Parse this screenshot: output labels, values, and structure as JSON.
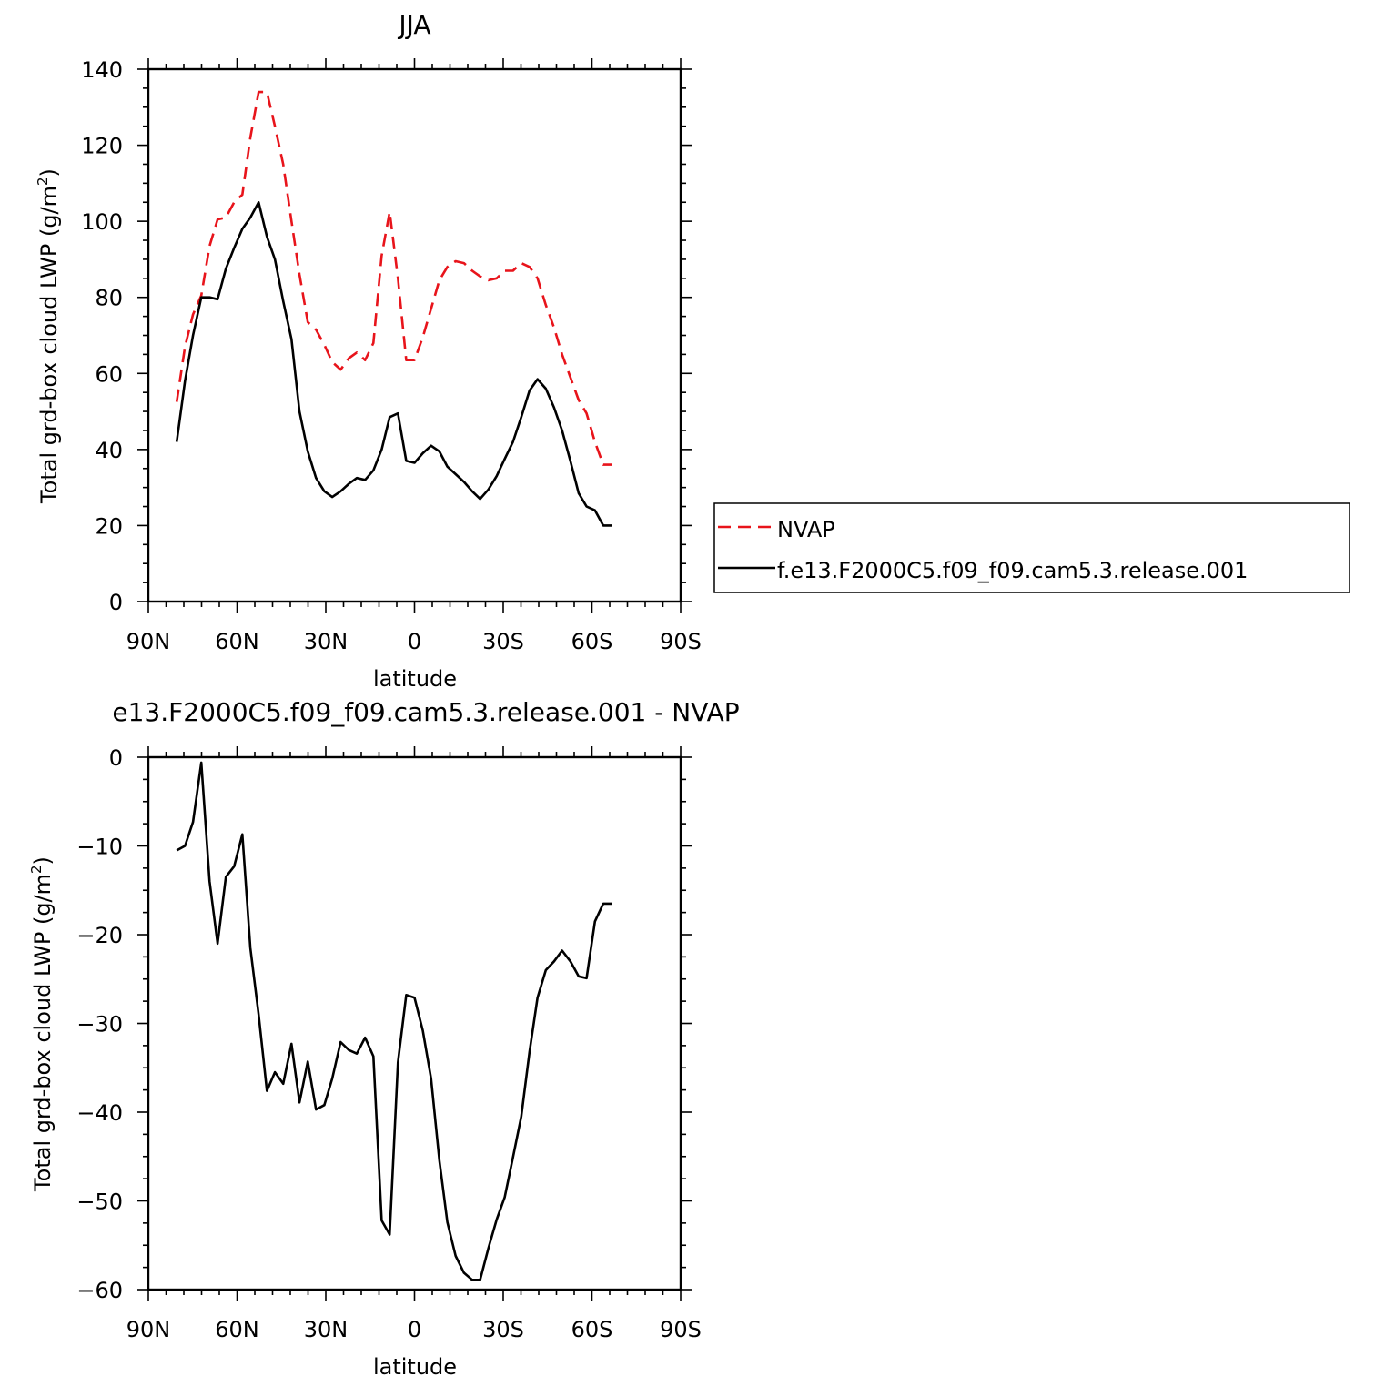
{
  "chart_data": [
    {
      "type": "line",
      "title": "JJA",
      "xlabel": "latitude",
      "ylabel": "Total grd-box cloud LWP",
      "yunit_base": "(g/m",
      "yunit_sup": "2",
      "yunit_close": ")",
      "xlim": [
        90,
        -90
      ],
      "ylim": [
        0,
        140
      ],
      "xticks": [
        {
          "value": 90,
          "label": "90N"
        },
        {
          "value": 60,
          "label": "60N"
        },
        {
          "value": 30,
          "label": "30N"
        },
        {
          "value": 0,
          "label": "0"
        },
        {
          "value": -30,
          "label": "30S"
        },
        {
          "value": -60,
          "label": "60S"
        },
        {
          "value": -90,
          "label": "90S"
        }
      ],
      "yticks": [
        {
          "value": 0,
          "label": "0"
        },
        {
          "value": 20,
          "label": "20"
        },
        {
          "value": 40,
          "label": "40"
        },
        {
          "value": 60,
          "label": "60"
        },
        {
          "value": 80,
          "label": "80"
        },
        {
          "value": 100,
          "label": "100"
        },
        {
          "value": 120,
          "label": "120"
        },
        {
          "value": 140,
          "label": "140"
        }
      ],
      "legend_position": "right",
      "series": [
        {
          "name": "NVAP",
          "color": "#e8141b",
          "dash": "dashed",
          "x": [
            80.4,
            77.6,
            74.9,
            72.1,
            69.3,
            66.6,
            63.8,
            61,
            58.2,
            55.5,
            52.7,
            49.9,
            47.2,
            44.4,
            41.6,
            38.9,
            36.1,
            33.3,
            30.5,
            27.8,
            25,
            22.2,
            19.5,
            16.7,
            13.9,
            11.1,
            8.4,
            5.6,
            2.8,
            0,
            -2.8,
            -5.6,
            -8.4,
            -11.1,
            -13.9,
            -16.7,
            -19.5,
            -22.2,
            -25,
            -27.8,
            -30.5,
            -33.3,
            -36.1,
            -38.9,
            -41.6,
            -44.4,
            -47.2,
            -49.9,
            -52.7,
            -55.5,
            -58.2,
            -61,
            -63.8,
            -66.6
          ],
          "values": [
            52.5,
            67,
            75.5,
            80.5,
            93.5,
            100.5,
            101,
            105,
            107,
            122,
            134,
            134,
            125,
            115,
            100,
            86,
            73.5,
            71.5,
            67.5,
            63,
            61,
            64,
            65.5,
            63.5,
            68,
            91,
            102.5,
            85,
            63.5,
            63.5,
            69.5,
            77,
            84.5,
            88,
            89.5,
            89,
            87,
            85.5,
            84.5,
            85,
            87,
            87,
            89,
            88,
            85,
            78,
            72,
            65,
            59,
            53,
            49.5,
            42,
            36,
            36
          ]
        },
        {
          "name": "f.e13.F2000C5.f09_f09.cam5.3.release.001",
          "color": "#000000",
          "dash": "solid",
          "x": [
            80.4,
            77.6,
            74.9,
            72.1,
            69.3,
            66.6,
            63.8,
            61,
            58.2,
            55.5,
            52.7,
            49.9,
            47.2,
            44.4,
            41.6,
            38.9,
            36.1,
            33.3,
            30.5,
            27.8,
            25,
            22.2,
            19.5,
            16.7,
            13.9,
            11.1,
            8.4,
            5.6,
            2.8,
            0,
            -2.8,
            -5.6,
            -8.4,
            -11.1,
            -13.9,
            -16.7,
            -19.5,
            -22.2,
            -25,
            -27.8,
            -30.5,
            -33.3,
            -36.1,
            -38.9,
            -41.6,
            -44.4,
            -47.2,
            -49.9,
            -52.7,
            -55.5,
            -58.2,
            -61,
            -63.8,
            -66.6
          ],
          "values": [
            42,
            58,
            70,
            80,
            80,
            79.5,
            87.5,
            93,
            98,
            101,
            105,
            96,
            90,
            79,
            69,
            50,
            39.5,
            32.5,
            29,
            27.5,
            29,
            31,
            32.5,
            32,
            34.5,
            40,
            48.5,
            49.5,
            37,
            36.5,
            39,
            41,
            39.5,
            35.5,
            33.5,
            31.5,
            29,
            27,
            29.5,
            33,
            37.5,
            42,
            48.5,
            55.5,
            58.5,
            56,
            51,
            45,
            37,
            28.5,
            25,
            24,
            20,
            20
          ]
        }
      ]
    },
    {
      "type": "line",
      "title": "e13.F2000C5.f09_f09.cam5.3.release.001  -  NVAP",
      "xlabel": "latitude",
      "ylabel": "Total grd-box cloud LWP",
      "yunit_base": "(g/m",
      "yunit_sup": "2",
      "yunit_close": ")",
      "xlim": [
        90,
        -90
      ],
      "ylim": [
        -60,
        0
      ],
      "xticks": [
        {
          "value": 90,
          "label": "90N"
        },
        {
          "value": 60,
          "label": "60N"
        },
        {
          "value": 30,
          "label": "30N"
        },
        {
          "value": 0,
          "label": "0"
        },
        {
          "value": -30,
          "label": "30S"
        },
        {
          "value": -60,
          "label": "60S"
        },
        {
          "value": -90,
          "label": "90S"
        }
      ],
      "yticks": [
        {
          "value": -60,
          "label": "−60"
        },
        {
          "value": -50,
          "label": "−50"
        },
        {
          "value": -40,
          "label": "−40"
        },
        {
          "value": -30,
          "label": "−30"
        },
        {
          "value": -20,
          "label": "−20"
        },
        {
          "value": -10,
          "label": "−10"
        },
        {
          "value": 0,
          "label": "0"
        }
      ],
      "series": [
        {
          "color": "#000000",
          "dash": "solid",
          "x": [
            80.4,
            77.6,
            74.9,
            72.1,
            69.3,
            66.6,
            63.8,
            61,
            58.2,
            55.5,
            52.7,
            49.9,
            47.2,
            44.4,
            41.6,
            38.9,
            36.1,
            33.3,
            30.5,
            27.8,
            25,
            22.2,
            19.5,
            16.7,
            13.9,
            11.1,
            8.4,
            5.6,
            2.8,
            0,
            -2.8,
            -5.6,
            -8.4,
            -11.1,
            -13.9,
            -16.7,
            -19.5,
            -22.2,
            -25,
            -27.8,
            -30.5,
            -33.3,
            -36.1,
            -38.9,
            -41.6,
            -44.4,
            -47.2,
            -49.9,
            -52.7,
            -55.5,
            -58.2,
            -61,
            -63.8,
            -66.6
          ],
          "values": [
            -10.5,
            -10,
            -7.3,
            -0.6,
            -14,
            -21,
            -13.5,
            -12.3,
            -8.7,
            -21.5,
            -29,
            -37.6,
            -35.5,
            -36.8,
            -32.3,
            -38.9,
            -34.3,
            -39.7,
            -39.2,
            -36.2,
            -32.1,
            -33,
            -33.4,
            -31.6,
            -33.7,
            -52.2,
            -53.8,
            -34.4,
            -26.8,
            -27.1,
            -30.8,
            -36.2,
            -45.4,
            -52.4,
            -56.2,
            -58.1,
            -58.9,
            -58.9,
            -55.3,
            -52.1,
            -49.6,
            -45.1,
            -40.5,
            -33.2,
            -27.1,
            -24,
            -23,
            -21.8,
            -23,
            -24.7,
            -24.9,
            -18.5,
            -16.5,
            -16.5
          ]
        }
      ]
    }
  ]
}
